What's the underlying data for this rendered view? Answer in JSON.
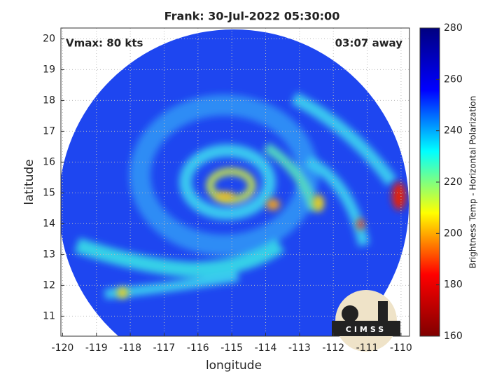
{
  "title": "Frank: 30-Jul-2022 05:30:00",
  "annotations": {
    "vmax": "Vmax: 80 kts",
    "time": "03:07 away"
  },
  "x_axis": {
    "label": "longitude",
    "lim": [
      -120.05,
      -109.75
    ],
    "ticks": [
      -120,
      -119,
      -118,
      -117,
      -116,
      -115,
      -114,
      -113,
      -112,
      -111,
      -110
    ]
  },
  "y_axis": {
    "label": "latitude",
    "lim": [
      10.35,
      20.35
    ],
    "ticks": [
      11,
      12,
      13,
      14,
      15,
      16,
      17,
      18,
      19,
      20
    ]
  },
  "grid": true,
  "colorbar": {
    "label": "Brightness Temp - Horizontal Polarization",
    "lim": [
      160,
      280
    ],
    "ticks": [
      160,
      180,
      200,
      220,
      240,
      260,
      280
    ],
    "colors": [
      "#800000",
      "#ff0000",
      "#ffff00",
      "#00ffff",
      "#0000ff",
      "#000080"
    ]
  },
  "logo": "CIMSS"
}
